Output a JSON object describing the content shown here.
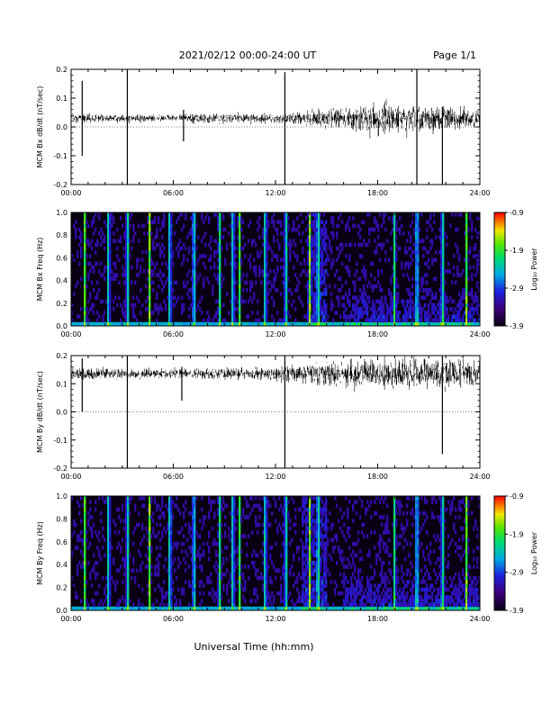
{
  "header": {
    "title": "2021/02/12  00:00-24:00 UT",
    "page": "Page 1/1"
  },
  "footer": {
    "xlabel": "Universal Time (hh:mm)"
  },
  "chart_data": [
    {
      "type": "line",
      "panel": "bx-timeseries",
      "ylabel": "MCM Bx dB/dt (nT/sec)",
      "xlim": [
        0,
        24
      ],
      "ylim": [
        -0.2,
        0.2
      ],
      "x_ticks": [
        "00:00",
        "06:00",
        "12:00",
        "18:00",
        "24:00"
      ],
      "y_ticks": [
        "-0.2",
        "-0.1",
        "0.0",
        "0.1",
        "0.2"
      ],
      "baseline": 0.03,
      "noise_amplitude_by_hour": [
        [
          0,
          0.02
        ],
        [
          3,
          0.015
        ],
        [
          5,
          0.012
        ],
        [
          8,
          0.02
        ],
        [
          12,
          0.018
        ],
        [
          14,
          0.03
        ],
        [
          16,
          0.045
        ],
        [
          18,
          0.06
        ],
        [
          20,
          0.055
        ],
        [
          22,
          0.045
        ],
        [
          24,
          0.04
        ]
      ],
      "spikes": [
        {
          "t": 0.65,
          "low": -0.1,
          "high": 0.16
        },
        {
          "t": 3.3,
          "low": -0.2,
          "high": 0.2
        },
        {
          "t": 6.6,
          "low": -0.05,
          "high": 0.06
        },
        {
          "t": 12.55,
          "low": -0.2,
          "high": 0.19
        },
        {
          "t": 20.3,
          "low": -0.2,
          "high": 0.2
        },
        {
          "t": 21.8,
          "low": -0.2,
          "high": 0.07
        }
      ]
    },
    {
      "type": "heatmap",
      "panel": "bx-spectrogram",
      "ylabel": "MCM Bx Freq (Hz)",
      "xlim": [
        0,
        24
      ],
      "ylim": [
        0.0,
        1.0
      ],
      "x_ticks": [
        "00:00",
        "06:00",
        "12:00",
        "18:00",
        "24:00"
      ],
      "y_ticks": [
        "0.0",
        "0.2",
        "0.4",
        "0.6",
        "0.8",
        "1.0"
      ],
      "colorbar": {
        "label": "Log₁₀ Power",
        "range": [
          -3.9,
          -0.9
        ],
        "ticks": [
          "-0.9",
          "-1.9",
          "-2.9",
          "-3.9"
        ]
      },
      "bright_columns_hours": [
        0.8,
        2.2,
        3.3,
        4.6,
        5.8,
        7.2,
        8.7,
        9.5,
        9.9,
        11.4,
        12.6,
        14.0,
        14.5,
        19.0,
        20.3,
        21.8,
        23.2
      ],
      "high_activity_hours": [
        13.8,
        15.0
      ]
    },
    {
      "type": "line",
      "panel": "by-timeseries",
      "ylabel": "MCM By dB/dt (nT/sec)",
      "xlim": [
        0,
        24
      ],
      "ylim": [
        -0.2,
        0.2
      ],
      "x_ticks": [
        "00:00",
        "06:00",
        "12:00",
        "18:00",
        "24:00"
      ],
      "y_ticks": [
        "-0.2",
        "-0.1",
        "0.0",
        "0.1",
        "0.2"
      ],
      "baseline": 0.135,
      "noise_amplitude_by_hour": [
        [
          0,
          0.025
        ],
        [
          3,
          0.02
        ],
        [
          6,
          0.02
        ],
        [
          9,
          0.025
        ],
        [
          12,
          0.025
        ],
        [
          13,
          0.035
        ],
        [
          15,
          0.05
        ],
        [
          18,
          0.06
        ],
        [
          21,
          0.06
        ],
        [
          24,
          0.055
        ]
      ],
      "spikes": [
        {
          "t": 0.65,
          "low": 0.0,
          "high": 0.19
        },
        {
          "t": 3.3,
          "low": -0.2,
          "high": 0.2
        },
        {
          "t": 6.5,
          "low": 0.04,
          "high": 0.16
        },
        {
          "t": 12.55,
          "low": -0.2,
          "high": 0.2
        },
        {
          "t": 21.8,
          "low": -0.15,
          "high": 0.2
        }
      ]
    },
    {
      "type": "heatmap",
      "panel": "by-spectrogram",
      "ylabel": "MCM By Freq (Hz)",
      "xlim": [
        0,
        24
      ],
      "ylim": [
        0.0,
        1.0
      ],
      "x_ticks": [
        "00:00",
        "06:00",
        "12:00",
        "18:00",
        "24:00"
      ],
      "y_ticks": [
        "0.0",
        "0.2",
        "0.4",
        "0.6",
        "0.8",
        "1.0"
      ],
      "colorbar": {
        "label": "Log₁₀ Power",
        "range": [
          -3.9,
          -0.9
        ],
        "ticks": [
          "-0.9",
          "-1.9",
          "-2.9",
          "-3.9"
        ]
      },
      "bright_columns_hours": [
        0.8,
        2.2,
        3.3,
        4.6,
        5.8,
        7.2,
        8.7,
        9.5,
        9.9,
        11.4,
        12.6,
        14.0,
        14.5,
        19.0,
        20.3,
        21.8,
        23.2
      ],
      "high_activity_hours": [
        13.5,
        15.0
      ]
    }
  ]
}
